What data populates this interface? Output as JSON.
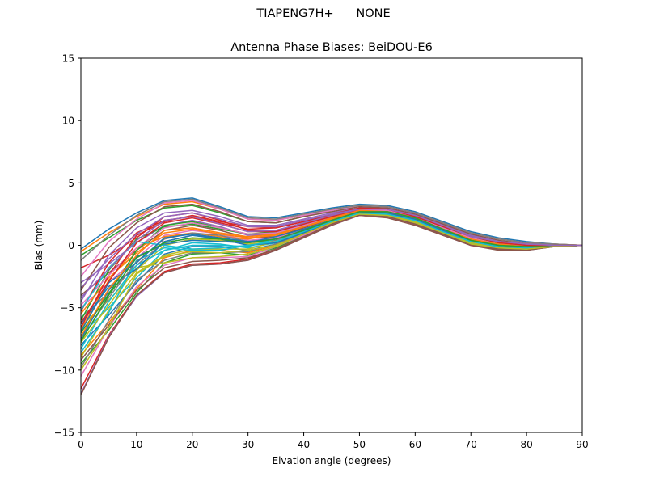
{
  "suptitle": "TIAPENG7H+      NONE",
  "chart_data": {
    "type": "line",
    "title": "Antenna Phase Biases: BeiDOU-E6",
    "xlabel": "Elvation angle (degrees)",
    "ylabel": "Bias (mm)",
    "xlim": [
      0,
      90
    ],
    "ylim": [
      -15,
      15
    ],
    "xticks": [
      0,
      10,
      20,
      30,
      40,
      50,
      60,
      70,
      80,
      90
    ],
    "yticks": [
      -15,
      -10,
      -5,
      0,
      5,
      10,
      15
    ],
    "grid": false,
    "legend": "none",
    "x": [
      0,
      5,
      10,
      15,
      20,
      25,
      30,
      35,
      40,
      45,
      50,
      55,
      60,
      65,
      70,
      75,
      80,
      85,
      90
    ],
    "series": [
      {
        "color": "#1f77b4",
        "values": [
          -0.3,
          1.3,
          2.6,
          3.6,
          3.8,
          3.1,
          2.3,
          2.2,
          2.6,
          3.0,
          3.3,
          3.2,
          2.7,
          1.9,
          1.1,
          0.6,
          0.3,
          0.1,
          0.0
        ]
      },
      {
        "color": "#ff7f0e",
        "values": [
          -0.5,
          1.0,
          2.3,
          3.3,
          3.5,
          2.9,
          2.1,
          2.0,
          2.4,
          2.9,
          3.2,
          3.1,
          2.6,
          1.8,
          1.0,
          0.5,
          0.2,
          0.1,
          0.0
        ]
      },
      {
        "color": "#2ca02c",
        "values": [
          -0.8,
          0.6,
          2.0,
          3.0,
          3.2,
          2.6,
          1.9,
          1.8,
          2.3,
          2.8,
          3.2,
          3.1,
          2.6,
          1.8,
          1.0,
          0.5,
          0.2,
          0.1,
          0.0
        ]
      },
      {
        "color": "#d62728",
        "values": [
          -1.8,
          -0.8,
          0.6,
          2.3,
          2.6,
          2.0,
          1.2,
          1.2,
          1.8,
          2.4,
          2.9,
          2.9,
          2.4,
          1.6,
          0.8,
          0.3,
          0.1,
          0.0,
          0.0
        ]
      },
      {
        "color": "#9467bd",
        "values": [
          -3.0,
          -1.5,
          0.2,
          1.6,
          2.0,
          1.5,
          0.8,
          0.9,
          1.5,
          2.2,
          2.8,
          2.8,
          2.3,
          1.5,
          0.7,
          0.2,
          0.0,
          0.0,
          0.0
        ]
      },
      {
        "color": "#8c564b",
        "values": [
          -4.0,
          -2.2,
          -0.4,
          1.2,
          1.6,
          1.2,
          0.6,
          0.7,
          1.4,
          2.1,
          2.7,
          2.7,
          2.2,
          1.4,
          0.6,
          0.1,
          -0.1,
          0.0,
          0.0
        ]
      },
      {
        "color": "#e377c2",
        "values": [
          -5.0,
          -3.0,
          -1.0,
          0.8,
          1.2,
          0.9,
          0.4,
          0.6,
          1.3,
          2.0,
          2.6,
          2.6,
          2.1,
          1.3,
          0.5,
          0.0,
          -0.1,
          0.0,
          0.0
        ]
      },
      {
        "color": "#7f7f7f",
        "values": [
          -5.8,
          -3.8,
          -1.6,
          0.3,
          0.8,
          0.6,
          0.2,
          0.4,
          1.2,
          1.9,
          2.6,
          2.6,
          2.1,
          1.2,
          0.4,
          0.0,
          -0.2,
          -0.1,
          0.0
        ]
      },
      {
        "color": "#bcbd22",
        "values": [
          -6.5,
          -4.4,
          -2.0,
          0.0,
          0.5,
          0.4,
          0.1,
          0.3,
          1.1,
          1.9,
          2.5,
          2.5,
          2.0,
          1.2,
          0.3,
          -0.1,
          -0.2,
          -0.1,
          0.0
        ]
      },
      {
        "color": "#17becf",
        "values": [
          -7.2,
          -5.0,
          -2.6,
          -0.4,
          0.2,
          0.1,
          -0.2,
          0.2,
          1.0,
          1.8,
          2.5,
          2.5,
          2.0,
          1.1,
          0.3,
          -0.1,
          -0.2,
          -0.1,
          0.0
        ]
      },
      {
        "color": "#1f77b4",
        "values": [
          -8.0,
          -5.6,
          -3.0,
          -0.7,
          -0.1,
          -0.1,
          -0.4,
          0.1,
          0.9,
          1.8,
          2.5,
          2.4,
          1.9,
          1.0,
          0.2,
          -0.2,
          -0.3,
          -0.1,
          0.0
        ]
      },
      {
        "color": "#ff7f0e",
        "values": [
          -8.8,
          -6.2,
          -3.5,
          -1.0,
          -0.4,
          -0.4,
          -0.6,
          0.0,
          0.9,
          1.7,
          2.4,
          2.4,
          1.8,
          1.0,
          0.1,
          -0.2,
          -0.3,
          -0.1,
          0.0
        ]
      },
      {
        "color": "#2ca02c",
        "values": [
          -9.5,
          -6.8,
          -3.8,
          -1.4,
          -0.7,
          -0.6,
          -0.8,
          -0.2,
          0.8,
          1.7,
          2.4,
          2.3,
          1.8,
          0.9,
          0.1,
          -0.3,
          -0.3,
          -0.1,
          0.0
        ]
      },
      {
        "color": "#d62728",
        "values": [
          -11.5,
          -7.2,
          -4.0,
          -2.1,
          -1.5,
          -1.4,
          -1.1,
          -0.3,
          0.7,
          1.7,
          2.4,
          2.3,
          1.7,
          0.9,
          0.0,
          -0.3,
          -0.3,
          -0.1,
          0.0
        ]
      },
      {
        "color": "#9467bd",
        "values": [
          -11.9,
          -7.3,
          -4.1,
          -2.2,
          -1.6,
          -1.5,
          -1.2,
          -0.4,
          0.6,
          1.6,
          2.4,
          2.3,
          1.7,
          0.8,
          0.0,
          -0.3,
          -0.4,
          -0.1,
          0.0
        ]
      },
      {
        "color": "#8c564b",
        "values": [
          -12.0,
          -7.4,
          -4.0,
          -2.2,
          -1.6,
          -1.5,
          -1.2,
          -0.4,
          0.6,
          1.6,
          2.4,
          2.2,
          1.6,
          0.8,
          0.0,
          -0.4,
          -0.4,
          -0.1,
          0.0
        ]
      },
      {
        "color": "#e377c2",
        "values": [
          -10.5,
          -6.6,
          -3.3,
          -1.6,
          -1.0,
          -1.0,
          -0.9,
          -0.1,
          0.8,
          1.7,
          2.4,
          2.3,
          1.8,
          0.9,
          0.1,
          -0.2,
          -0.3,
          -0.1,
          0.0
        ]
      },
      {
        "color": "#7f7f7f",
        "values": [
          -9.8,
          -6.0,
          -2.8,
          -1.2,
          -0.6,
          -0.6,
          -0.5,
          0.1,
          1.0,
          1.8,
          2.5,
          2.4,
          1.9,
          1.0,
          0.2,
          -0.2,
          -0.3,
          -0.1,
          0.0
        ]
      },
      {
        "color": "#bcbd22",
        "values": [
          -9.0,
          -5.2,
          -2.2,
          -0.8,
          -0.3,
          -0.3,
          -0.3,
          0.3,
          1.1,
          1.9,
          2.5,
          2.5,
          1.9,
          1.1,
          0.2,
          -0.1,
          -0.2,
          -0.1,
          0.0
        ]
      },
      {
        "color": "#17becf",
        "values": [
          -8.3,
          -4.5,
          -1.6,
          -0.4,
          0.0,
          0.0,
          -0.1,
          0.5,
          1.2,
          2.0,
          2.6,
          2.5,
          2.0,
          1.1,
          0.3,
          -0.1,
          -0.2,
          0.0,
          0.0
        ]
      },
      {
        "color": "#1f77b4",
        "values": [
          -7.5,
          -3.6,
          -0.9,
          0.1,
          0.4,
          0.3,
          0.2,
          0.7,
          1.3,
          2.0,
          2.6,
          2.6,
          2.1,
          1.2,
          0.4,
          0.0,
          -0.1,
          0.0,
          0.0
        ]
      },
      {
        "color": "#ff7f0e",
        "values": [
          -6.8,
          -2.8,
          -0.2,
          0.7,
          1.0,
          0.7,
          0.5,
          0.9,
          1.5,
          2.1,
          2.7,
          2.7,
          2.2,
          1.3,
          0.5,
          0.1,
          -0.1,
          0.0,
          0.0
        ]
      },
      {
        "color": "#2ca02c",
        "values": [
          -6.0,
          -2.0,
          0.5,
          1.5,
          1.7,
          1.3,
          0.9,
          1.1,
          1.7,
          2.3,
          2.8,
          2.8,
          2.3,
          1.5,
          0.6,
          0.2,
          0.0,
          0.0,
          0.0
        ]
      },
      {
        "color": "#d62728",
        "values": [
          -5.3,
          -1.4,
          1.0,
          2.0,
          2.3,
          1.8,
          1.3,
          1.4,
          1.9,
          2.4,
          2.9,
          2.9,
          2.4,
          1.6,
          0.7,
          0.2,
          0.0,
          0.0,
          0.0
        ]
      },
      {
        "color": "#9467bd",
        "values": [
          -4.5,
          -0.8,
          1.4,
          2.6,
          2.8,
          2.3,
          1.6,
          1.6,
          2.1,
          2.6,
          3.0,
          3.0,
          2.5,
          1.7,
          0.8,
          0.3,
          0.1,
          0.0,
          0.0
        ]
      },
      {
        "color": "#8c564b",
        "values": [
          -3.6,
          -0.2,
          1.8,
          3.1,
          3.3,
          2.7,
          1.9,
          1.8,
          2.3,
          2.7,
          3.1,
          3.0,
          2.5,
          1.7,
          0.9,
          0.4,
          0.1,
          0.0,
          0.0
        ]
      },
      {
        "color": "#e377c2",
        "values": [
          -2.5,
          0.3,
          2.1,
          3.4,
          3.6,
          2.9,
          2.1,
          2.0,
          2.4,
          2.8,
          3.2,
          3.1,
          2.6,
          1.8,
          1.0,
          0.5,
          0.2,
          0.1,
          0.0
        ]
      },
      {
        "color": "#7f7f7f",
        "values": [
          -1.2,
          0.8,
          2.4,
          3.5,
          3.7,
          3.0,
          2.2,
          2.1,
          2.5,
          2.9,
          3.2,
          3.1,
          2.6,
          1.8,
          1.0,
          0.5,
          0.2,
          0.1,
          0.0
        ]
      },
      {
        "color": "#bcbd22",
        "values": [
          -7.8,
          -4.8,
          -1.8,
          -1.4,
          -1.0,
          -0.9,
          -0.7,
          -0.1,
          0.9,
          1.8,
          2.4,
          2.3,
          1.8,
          0.9,
          0.1,
          -0.2,
          -0.3,
          -0.1,
          0.0
        ]
      },
      {
        "color": "#17becf",
        "values": [
          -8.6,
          -5.4,
          -1.2,
          -0.2,
          -0.4,
          -0.4,
          0.0,
          0.2,
          1.0,
          1.9,
          2.5,
          2.4,
          1.9,
          1.0,
          0.2,
          -0.2,
          -0.3,
          -0.1,
          0.0
        ]
      },
      {
        "color": "#1f77b4",
        "values": [
          -6.3,
          -3.3,
          -1.9,
          0.3,
          0.8,
          0.5,
          0.0,
          0.2,
          1.0,
          1.9,
          2.6,
          2.6,
          2.1,
          1.2,
          0.3,
          -0.1,
          -0.2,
          -0.1,
          0.0
        ]
      },
      {
        "color": "#ff7f0e",
        "values": [
          -5.5,
          -2.6,
          -0.6,
          1.0,
          1.3,
          0.9,
          0.6,
          0.8,
          1.5,
          2.2,
          2.8,
          2.8,
          2.2,
          1.4,
          0.5,
          0.1,
          -0.1,
          0.0,
          0.0
        ]
      },
      {
        "color": "#2ca02c",
        "values": [
          -7.0,
          -3.9,
          -0.4,
          1.6,
          1.9,
          1.4,
          0.9,
          1.0,
          1.6,
          2.3,
          2.9,
          2.8,
          2.3,
          1.5,
          0.6,
          0.2,
          0.0,
          0.0,
          0.0
        ]
      },
      {
        "color": "#d62728",
        "values": [
          -6.6,
          -2.4,
          0.8,
          1.9,
          2.4,
          1.9,
          1.5,
          1.4,
          1.9,
          2.5,
          3.0,
          2.9,
          2.4,
          1.6,
          0.7,
          0.3,
          0.0,
          0.0,
          0.0
        ]
      },
      {
        "color": "#9467bd",
        "values": [
          -3.4,
          -1.1,
          0.9,
          2.3,
          2.6,
          2.1,
          1.5,
          1.5,
          2.0,
          2.5,
          2.9,
          2.9,
          2.4,
          1.6,
          0.8,
          0.3,
          0.1,
          0.0,
          0.0
        ]
      },
      {
        "color": "#8c564b",
        "values": [
          -9.2,
          -6.4,
          -3.6,
          -1.8,
          -1.3,
          -1.2,
          -1.0,
          -0.3,
          0.7,
          1.7,
          2.4,
          2.3,
          1.7,
          0.9,
          0.0,
          -0.3,
          -0.4,
          -0.1,
          0.0
        ]
      },
      {
        "color": "#e377c2",
        "values": [
          -4.8,
          -2.4,
          -0.2,
          1.4,
          1.8,
          1.4,
          0.9,
          1.0,
          1.6,
          2.3,
          2.8,
          2.8,
          2.3,
          1.4,
          0.6,
          0.1,
          0.0,
          0.0,
          0.0
        ]
      },
      {
        "color": "#7f7f7f",
        "values": [
          -7.6,
          -4.2,
          -1.3,
          0.5,
          1.0,
          0.8,
          0.3,
          0.5,
          1.2,
          2.0,
          2.6,
          2.6,
          2.1,
          1.2,
          0.4,
          0.0,
          -0.2,
          -0.1,
          0.0
        ]
      },
      {
        "color": "#bcbd22",
        "values": [
          -10.0,
          -6.6,
          -2.3,
          -0.9,
          -0.5,
          -0.6,
          -0.4,
          0.0,
          0.9,
          1.8,
          2.5,
          2.4,
          1.9,
          1.0,
          0.2,
          -0.2,
          -0.3,
          -0.1,
          0.0
        ]
      },
      {
        "color": "#17becf",
        "values": [
          -5.2,
          -1.8,
          0.3,
          0.0,
          -0.3,
          -0.2,
          0.0,
          0.3,
          1.1,
          1.9,
          2.6,
          2.5,
          2.0,
          1.1,
          0.3,
          -0.1,
          -0.2,
          0.0,
          0.0
        ]
      },
      {
        "color": "#1f77b4",
        "values": [
          -6.9,
          -3.0,
          -1.4,
          0.6,
          0.9,
          0.6,
          0.3,
          0.5,
          1.2,
          2.0,
          2.7,
          2.6,
          2.1,
          1.2,
          0.4,
          0.0,
          -0.1,
          0.0,
          0.0
        ]
      },
      {
        "color": "#ff7f0e",
        "values": [
          -7.3,
          -3.5,
          -0.8,
          1.2,
          1.4,
          1.0,
          0.7,
          0.9,
          1.5,
          2.2,
          2.8,
          2.7,
          2.2,
          1.3,
          0.5,
          0.1,
          -0.1,
          0.0,
          0.0
        ]
      },
      {
        "color": "#2ca02c",
        "values": [
          -7.7,
          -4.0,
          -1.0,
          0.2,
          0.6,
          0.5,
          0.2,
          0.5,
          1.2,
          2.0,
          2.7,
          2.7,
          2.2,
          1.3,
          0.4,
          0.0,
          -0.1,
          0.0,
          0.0
        ]
      },
      {
        "color": "#d62728",
        "values": [
          -6.2,
          -2.9,
          0.2,
          1.8,
          2.2,
          1.7,
          1.1,
          1.1,
          1.7,
          2.3,
          2.9,
          2.9,
          2.3,
          1.5,
          0.7,
          0.2,
          0.0,
          0.0,
          0.0
        ]
      },
      {
        "color": "#9467bd",
        "values": [
          -4.2,
          -1.9,
          0.4,
          2.0,
          2.3,
          1.7,
          1.1,
          1.2,
          1.8,
          2.4,
          2.9,
          2.9,
          2.4,
          1.6,
          0.7,
          0.3,
          0.1,
          0.0,
          0.0
        ]
      }
    ]
  }
}
